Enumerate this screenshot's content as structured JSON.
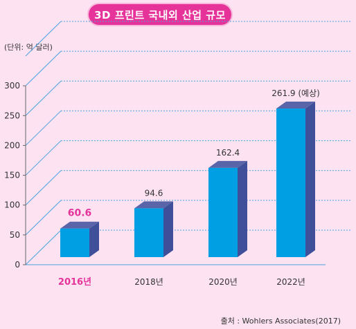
{
  "chart_data": {
    "type": "bar",
    "title": "3D 프린트 국내외 산업 규모",
    "unit": "(단위: 억 달러)",
    "categories": [
      "2016년",
      "2018년",
      "2020년",
      "2022년"
    ],
    "values": [
      60.6,
      94.6,
      162.4,
      261.9
    ],
    "value_labels": [
      "60.6",
      "94.6",
      "162.4",
      "261.9 (예상)"
    ],
    "highlight_index": 0,
    "yticks": [
      0,
      50,
      100,
      150,
      200,
      250,
      300
    ],
    "ylim": [
      0,
      350
    ],
    "grid": true,
    "source": "출처 : Wohlers Associates(2017)",
    "colors": {
      "bar_front": "#009fe3",
      "bar_side": "#3f4f9a",
      "bar_top": "#5a64a8",
      "highlight_text": "#e5339a",
      "grid": "#4aa3df"
    }
  }
}
